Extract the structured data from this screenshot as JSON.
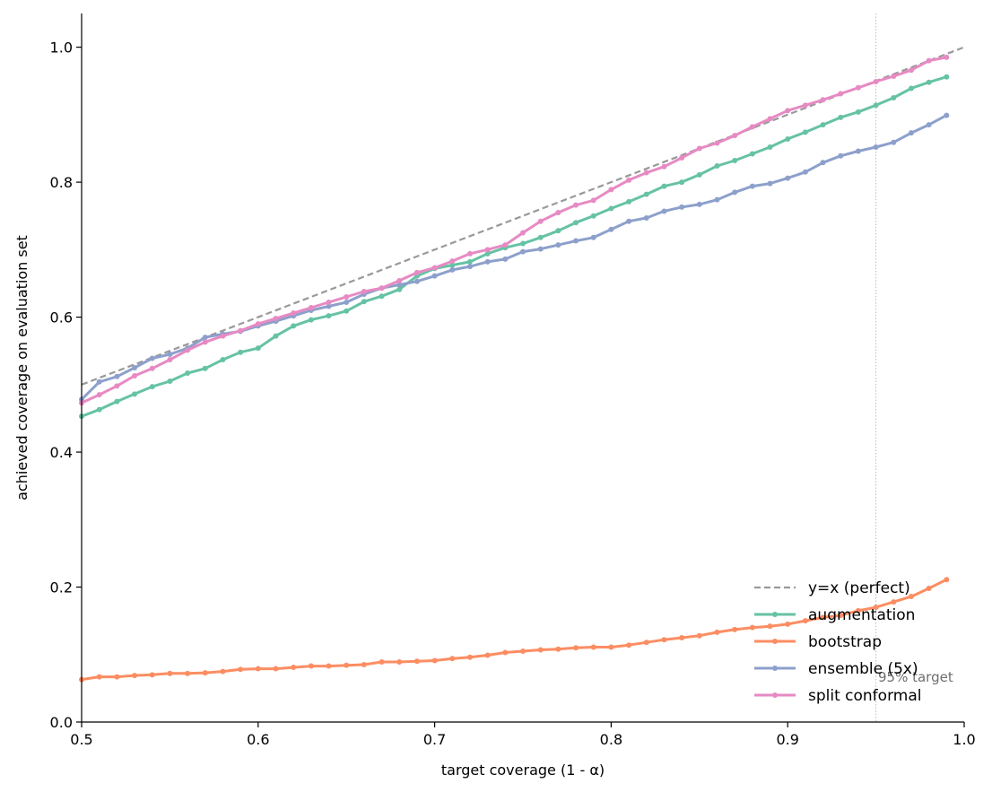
{
  "chart_data": {
    "type": "line",
    "title": "",
    "xlabel": "target coverage (1 - α)",
    "ylabel": "achieved coverage on evaluation set",
    "xlim": [
      0.5,
      1.0
    ],
    "ylim": [
      0.0,
      1.05
    ],
    "xticks": [
      "0.5",
      "0.6",
      "0.7",
      "0.8",
      "0.9",
      "1.0"
    ],
    "yticks": [
      "0.0",
      "0.2",
      "0.4",
      "0.6",
      "0.8",
      "1.0"
    ],
    "grid": false,
    "legend_position": "lower-right",
    "reference_line": {
      "label": "y=x (perfect)",
      "color": "#999999",
      "style": "dashed"
    },
    "annotation": {
      "text": "95% target",
      "x": 0.95
    },
    "x": [
      0.5,
      0.51,
      0.52,
      0.53,
      0.54,
      0.55,
      0.56,
      0.57,
      0.58,
      0.59,
      0.6,
      0.61,
      0.62,
      0.63,
      0.64,
      0.65,
      0.66,
      0.67,
      0.68,
      0.69,
      0.7,
      0.71,
      0.72,
      0.73,
      0.74,
      0.75,
      0.76,
      0.77,
      0.78,
      0.79,
      0.8,
      0.81,
      0.82,
      0.83,
      0.84,
      0.85,
      0.86,
      0.87,
      0.88,
      0.89,
      0.9,
      0.91,
      0.92,
      0.93,
      0.94,
      0.95,
      0.96,
      0.97,
      0.98,
      0.99
    ],
    "series": [
      {
        "name": "augmentation",
        "color": "#66c2a5",
        "values": [
          0.453,
          0.463,
          0.475,
          0.486,
          0.497,
          0.505,
          0.517,
          0.524,
          0.537,
          0.548,
          0.554,
          0.572,
          0.587,
          0.596,
          0.602,
          0.609,
          0.623,
          0.631,
          0.641,
          0.661,
          0.672,
          0.677,
          0.682,
          0.694,
          0.703,
          0.709,
          0.718,
          0.728,
          0.74,
          0.75,
          0.761,
          0.771,
          0.782,
          0.794,
          0.8,
          0.811,
          0.824,
          0.832,
          0.842,
          0.852,
          0.864,
          0.874,
          0.885,
          0.896,
          0.904,
          0.914,
          0.925,
          0.939,
          0.948,
          0.956
        ]
      },
      {
        "name": "bootstrap",
        "color": "#fc8d62",
        "values": [
          0.063,
          0.067,
          0.067,
          0.069,
          0.07,
          0.072,
          0.072,
          0.073,
          0.075,
          0.078,
          0.079,
          0.079,
          0.081,
          0.083,
          0.083,
          0.084,
          0.085,
          0.089,
          0.089,
          0.09,
          0.091,
          0.094,
          0.096,
          0.099,
          0.103,
          0.105,
          0.107,
          0.108,
          0.11,
          0.111,
          0.111,
          0.114,
          0.118,
          0.122,
          0.125,
          0.128,
          0.133,
          0.137,
          0.14,
          0.142,
          0.145,
          0.15,
          0.155,
          0.158,
          0.165,
          0.17,
          0.178,
          0.186,
          0.198,
          0.211
        ]
      },
      {
        "name": "ensemble (5x)",
        "color": "#8da0cb",
        "values": [
          0.478,
          0.504,
          0.512,
          0.525,
          0.539,
          0.545,
          0.554,
          0.57,
          0.575,
          0.579,
          0.587,
          0.594,
          0.602,
          0.61,
          0.616,
          0.622,
          0.634,
          0.643,
          0.648,
          0.653,
          0.661,
          0.67,
          0.675,
          0.682,
          0.686,
          0.697,
          0.701,
          0.707,
          0.713,
          0.718,
          0.73,
          0.742,
          0.747,
          0.757,
          0.763,
          0.767,
          0.774,
          0.785,
          0.794,
          0.798,
          0.806,
          0.815,
          0.829,
          0.839,
          0.846,
          0.852,
          0.859,
          0.873,
          0.885,
          0.899
        ]
      },
      {
        "name": "split conformal",
        "color": "#e78ac3",
        "values": [
          0.473,
          0.485,
          0.498,
          0.513,
          0.524,
          0.537,
          0.551,
          0.563,
          0.572,
          0.58,
          0.59,
          0.598,
          0.606,
          0.614,
          0.622,
          0.63,
          0.638,
          0.643,
          0.654,
          0.666,
          0.673,
          0.683,
          0.694,
          0.7,
          0.707,
          0.725,
          0.742,
          0.755,
          0.766,
          0.773,
          0.789,
          0.803,
          0.814,
          0.823,
          0.836,
          0.85,
          0.858,
          0.869,
          0.882,
          0.894,
          0.906,
          0.914,
          0.922,
          0.931,
          0.94,
          0.949,
          0.957,
          0.966,
          0.98,
          0.985
        ]
      }
    ]
  }
}
